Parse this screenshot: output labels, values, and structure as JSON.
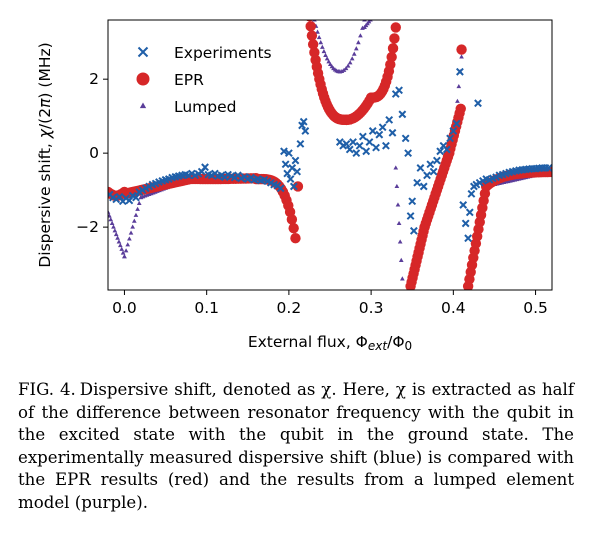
{
  "caption": {
    "label": "FIG. 4.",
    "text": "Dispersive shift, denoted as χ. Here, χ is extracted as half of the difference between resonator frequency with the qubit in the excited state with the qubit in the ground state. The experimentally measured dispersive shift (blue) is compared with the EPR results (red) and the results from a lumped element model (purple)."
  },
  "chart_data": {
    "type": "scatter",
    "xlabel": "External flux, Φext/Φ0",
    "ylabel": "Dispersive shift, χ/(2π) (MHz)",
    "xlim": [
      -0.02,
      0.52
    ],
    "ylim": [
      -3.7,
      3.6
    ],
    "x_ticks": [
      0.0,
      0.1,
      0.2,
      0.3,
      0.4,
      0.5
    ],
    "x_tick_labels": [
      "0.0",
      "0.1",
      "0.2",
      "0.3",
      "0.4",
      "0.5"
    ],
    "y_ticks": [
      -2,
      0,
      2
    ],
    "y_tick_labels": [
      "−2",
      "0",
      "2"
    ],
    "grid": false,
    "legend_position": "top-left",
    "colors": {
      "experiments": "#1f5fa8",
      "epr": "#d62728",
      "lumped": "#5a3d9a"
    },
    "series": [
      {
        "name": "Experiments",
        "marker": "x",
        "points": [
          [
            -0.018,
            -1.12
          ],
          [
            -0.014,
            -1.2
          ],
          [
            -0.01,
            -1.25
          ],
          [
            -0.006,
            -1.18
          ],
          [
            -0.002,
            -1.3
          ],
          [
            0.002,
            -1.22
          ],
          [
            0.006,
            -1.28
          ],
          [
            0.01,
            -1.15
          ],
          [
            0.014,
            -1.2
          ],
          [
            0.018,
            -1.05
          ],
          [
            0.022,
            -1.0
          ],
          [
            0.026,
            -0.95
          ],
          [
            0.03,
            -0.9
          ],
          [
            0.034,
            -0.85
          ],
          [
            0.038,
            -0.82
          ],
          [
            0.042,
            -0.78
          ],
          [
            0.046,
            -0.75
          ],
          [
            0.05,
            -0.72
          ],
          [
            0.054,
            -0.7
          ],
          [
            0.058,
            -0.66
          ],
          [
            0.062,
            -0.64
          ],
          [
            0.066,
            -0.62
          ],
          [
            0.07,
            -0.6
          ],
          [
            0.074,
            -0.58
          ],
          [
            0.078,
            -0.6
          ],
          [
            0.082,
            -0.55
          ],
          [
            0.086,
            -0.6
          ],
          [
            0.09,
            -0.56
          ],
          [
            0.094,
            -0.5
          ],
          [
            0.098,
            -0.38
          ],
          [
            0.102,
            -0.58
          ],
          [
            0.106,
            -0.6
          ],
          [
            0.11,
            -0.55
          ],
          [
            0.114,
            -0.62
          ],
          [
            0.118,
            -0.6
          ],
          [
            0.122,
            -0.65
          ],
          [
            0.126,
            -0.58
          ],
          [
            0.13,
            -0.62
          ],
          [
            0.134,
            -0.66
          ],
          [
            0.138,
            -0.6
          ],
          [
            0.142,
            -0.68
          ],
          [
            0.146,
            -0.64
          ],
          [
            0.15,
            -0.7
          ],
          [
            0.154,
            -0.66
          ],
          [
            0.158,
            -0.72
          ],
          [
            0.162,
            -0.7
          ],
          [
            0.166,
            -0.74
          ],
          [
            0.17,
            -0.72
          ],
          [
            0.174,
            -0.76
          ],
          [
            0.178,
            -0.8
          ],
          [
            0.182,
            -0.85
          ],
          [
            0.186,
            -0.88
          ],
          [
            0.19,
            -0.95
          ],
          [
            0.194,
            0.05
          ],
          [
            0.196,
            -0.3
          ],
          [
            0.198,
            -0.55
          ],
          [
            0.2,
            0.0
          ],
          [
            0.202,
            -0.7
          ],
          [
            0.204,
            -0.4
          ],
          [
            0.206,
            -0.9
          ],
          [
            0.208,
            -0.2
          ],
          [
            0.21,
            -0.5
          ],
          [
            0.214,
            0.25
          ],
          [
            0.216,
            0.75
          ],
          [
            0.218,
            0.85
          ],
          [
            0.22,
            0.6
          ],
          [
            0.262,
            0.3
          ],
          [
            0.266,
            0.2
          ],
          [
            0.27,
            0.25
          ],
          [
            0.274,
            0.1
          ],
          [
            0.278,
            0.3
          ],
          [
            0.282,
            0.0
          ],
          [
            0.286,
            0.2
          ],
          [
            0.29,
            0.45
          ],
          [
            0.294,
            0.05
          ],
          [
            0.298,
            0.3
          ],
          [
            0.302,
            0.6
          ],
          [
            0.306,
            0.15
          ],
          [
            0.31,
            0.5
          ],
          [
            0.314,
            0.7
          ],
          [
            0.318,
            0.2
          ],
          [
            0.322,
            0.9
          ],
          [
            0.326,
            0.55
          ],
          [
            0.33,
            1.6
          ],
          [
            0.334,
            1.7
          ],
          [
            0.338,
            1.05
          ],
          [
            0.342,
            0.4
          ],
          [
            0.345,
            0.0
          ],
          [
            0.348,
            -1.7
          ],
          [
            0.35,
            -1.3
          ],
          [
            0.352,
            -2.1
          ],
          [
            0.356,
            -0.8
          ],
          [
            0.36,
            -0.4
          ],
          [
            0.364,
            -0.9
          ],
          [
            0.368,
            -0.6
          ],
          [
            0.372,
            -0.3
          ],
          [
            0.376,
            -0.5
          ],
          [
            0.38,
            -0.2
          ],
          [
            0.384,
            0.05
          ],
          [
            0.388,
            0.2
          ],
          [
            0.392,
            0.1
          ],
          [
            0.396,
            0.4
          ],
          [
            0.4,
            0.6
          ],
          [
            0.404,
            0.8
          ],
          [
            0.408,
            2.2
          ],
          [
            0.412,
            -1.4
          ],
          [
            0.415,
            -1.9
          ],
          [
            0.418,
            -2.3
          ],
          [
            0.42,
            -1.6
          ],
          [
            0.422,
            -1.1
          ],
          [
            0.425,
            -0.9
          ],
          [
            0.428,
            -0.85
          ],
          [
            0.432,
            -0.8
          ],
          [
            0.436,
            -0.75
          ],
          [
            0.44,
            -0.7
          ],
          [
            0.444,
            -0.72
          ],
          [
            0.448,
            -0.68
          ],
          [
            0.452,
            -0.65
          ],
          [
            0.456,
            -0.6
          ],
          [
            0.46,
            -0.58
          ],
          [
            0.464,
            -0.55
          ],
          [
            0.468,
            -0.52
          ],
          [
            0.472,
            -0.5
          ],
          [
            0.476,
            -0.48
          ],
          [
            0.48,
            -0.46
          ],
          [
            0.484,
            -0.45
          ],
          [
            0.488,
            -0.44
          ],
          [
            0.492,
            -0.43
          ],
          [
            0.496,
            -0.42
          ],
          [
            0.5,
            -0.42
          ],
          [
            0.504,
            -0.41
          ],
          [
            0.508,
            -0.4
          ],
          [
            0.512,
            -0.4
          ],
          [
            0.516,
            -0.4
          ],
          [
            0.43,
            1.35
          ]
        ]
      },
      {
        "name": "EPR",
        "marker": "o"
      },
      {
        "name": "Lumped",
        "marker": "^"
      }
    ]
  }
}
